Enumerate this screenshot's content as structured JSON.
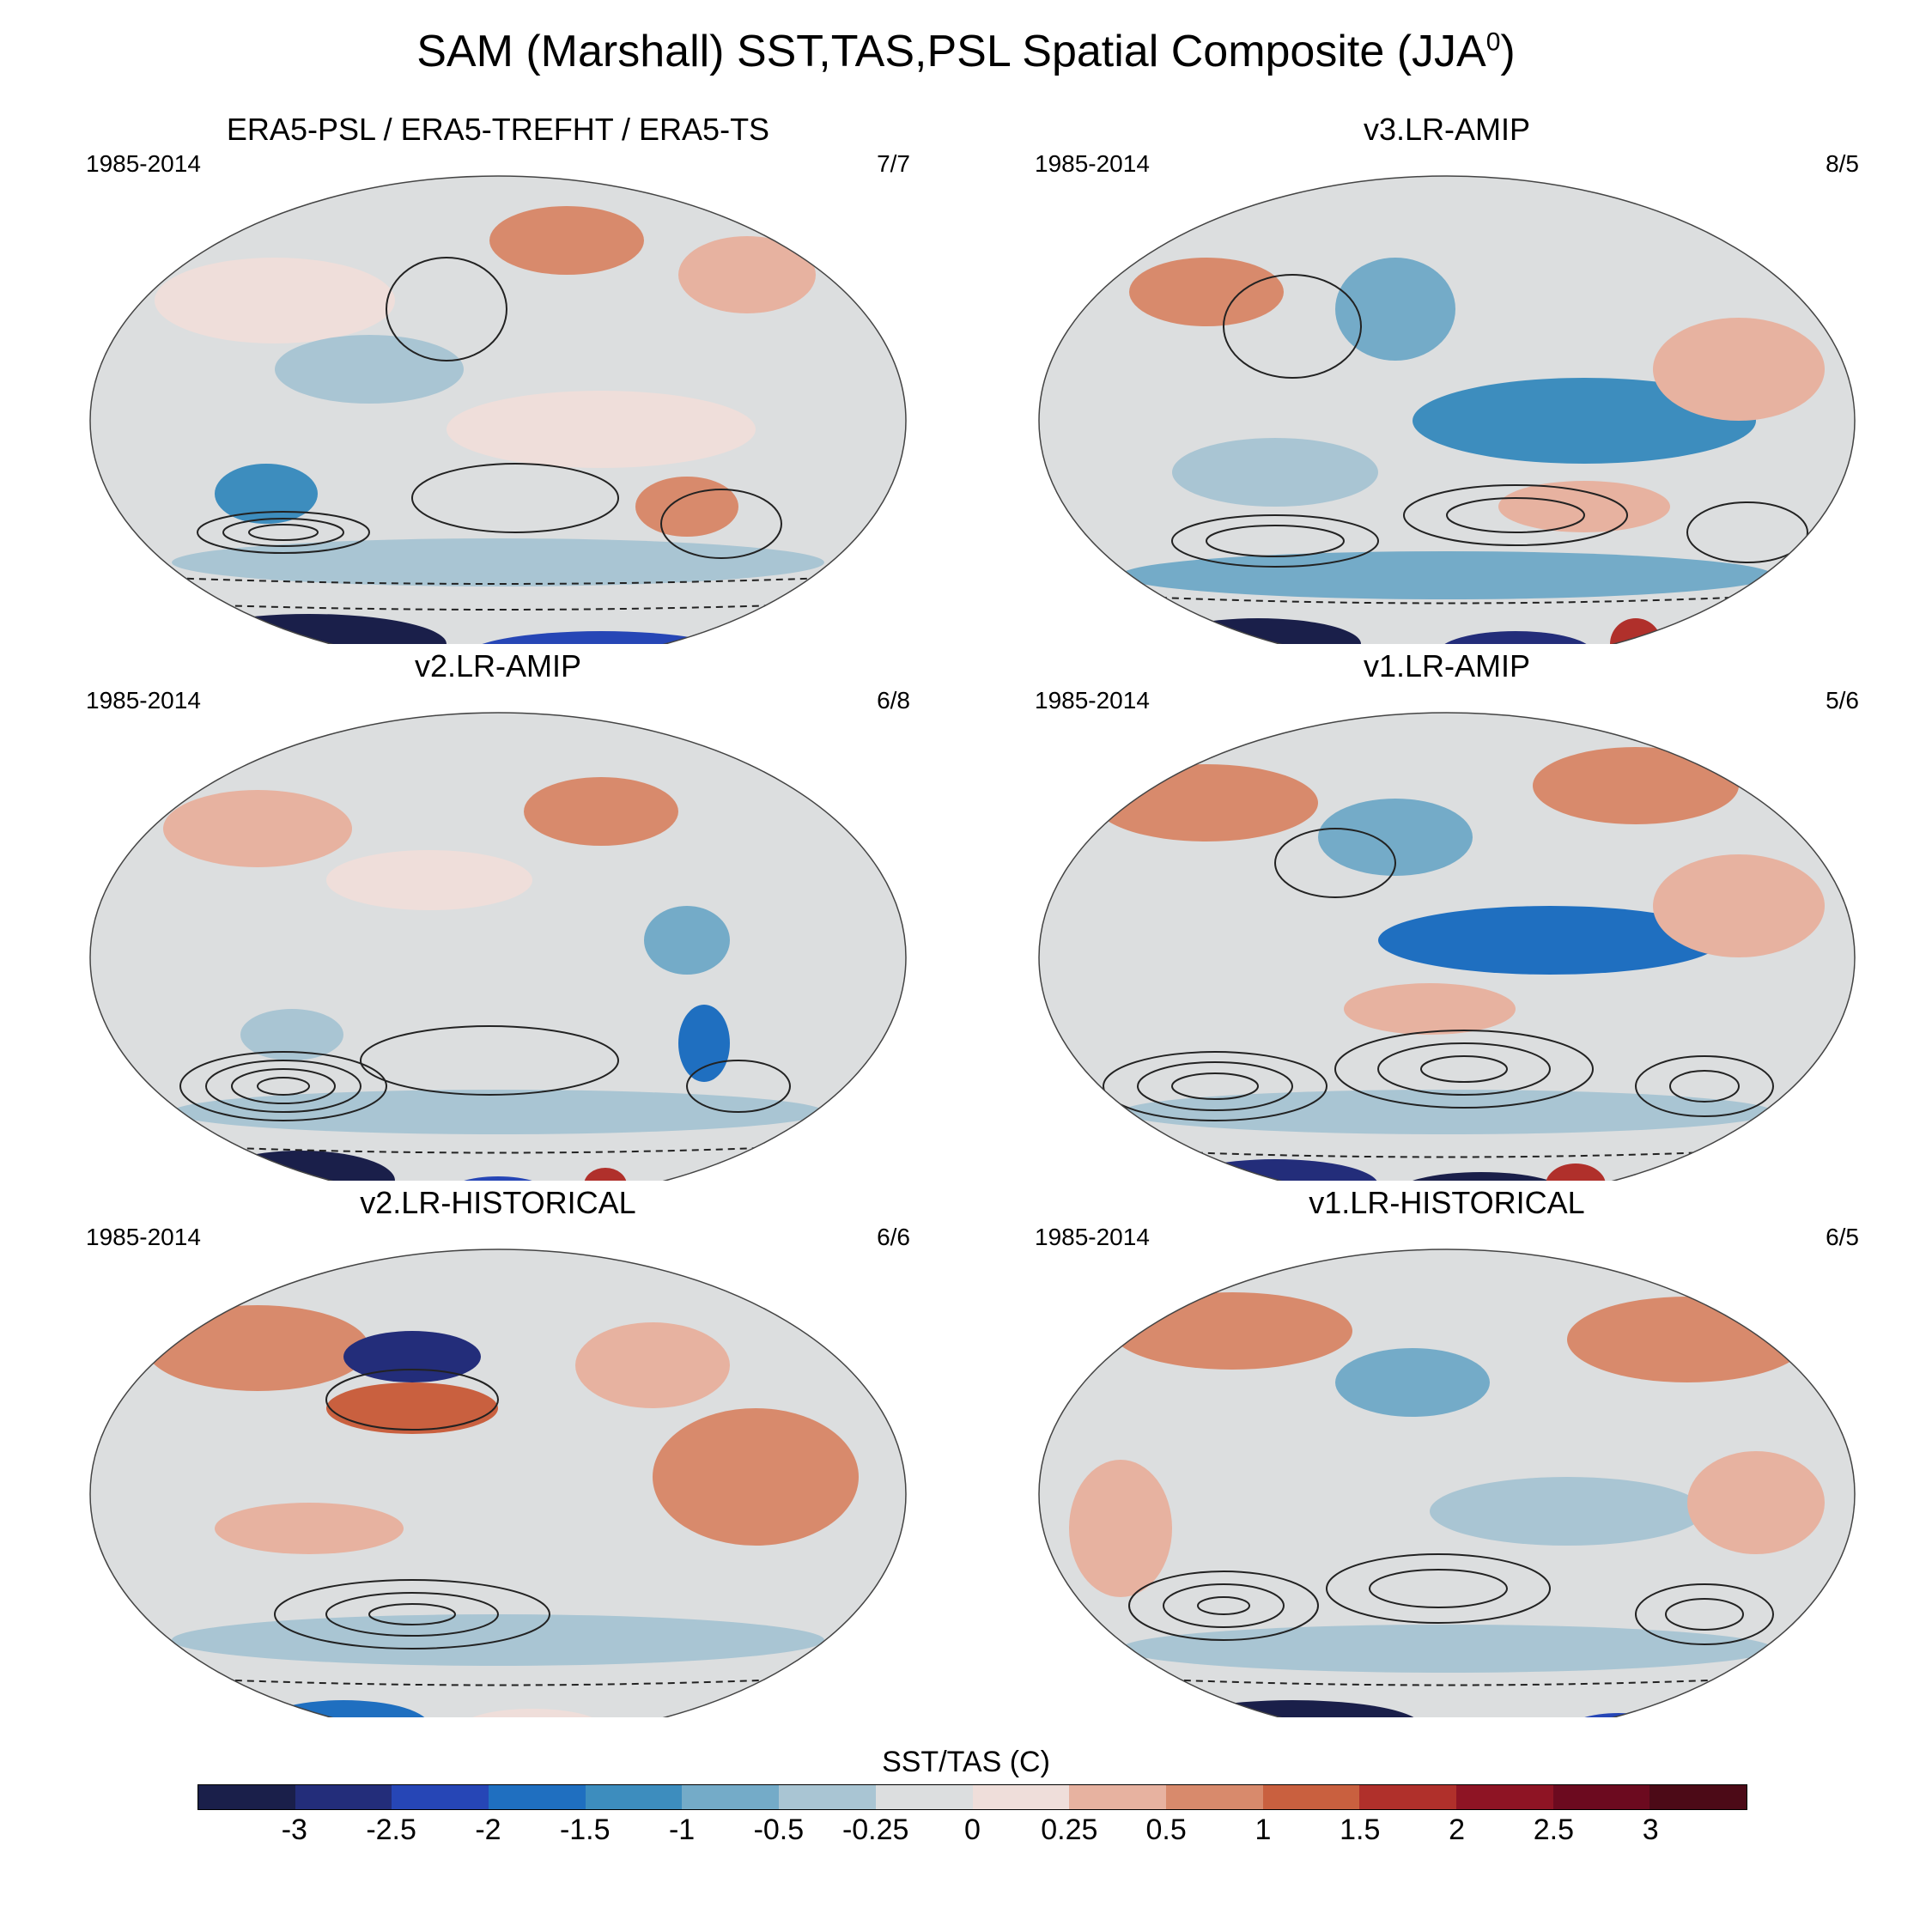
{
  "title": {
    "main": "SAM (Marshall) SST,TAS,PSL Spatial Composite (JJA",
    "superscript": "0",
    "closing": ")"
  },
  "panels": [
    {
      "title": "ERA5-PSL / ERA5-TREFHT / ERA5-TS",
      "years": "1985-2014",
      "ratio": "7/7"
    },
    {
      "title": "v3.LR-AMIP",
      "years": "1985-2014",
      "ratio": "8/5"
    },
    {
      "title": "v2.LR-AMIP",
      "years": "1985-2014",
      "ratio": "6/8"
    },
    {
      "title": "v1.LR-AMIP",
      "years": "1985-2014",
      "ratio": "5/6"
    },
    {
      "title": "v2.LR-HISTORICAL",
      "years": "1985-2014",
      "ratio": "6/6"
    },
    {
      "title": "v1.LR-HISTORICAL",
      "years": "1985-2014",
      "ratio": "6/5"
    }
  ],
  "colorbar": {
    "title": "SST/TAS (C)",
    "labels": [
      "-3",
      "-2.5",
      "-2",
      "-1.5",
      "-1",
      "-0.5",
      "-0.25",
      "0",
      "0.25",
      "0.5",
      "1",
      "1.5",
      "2",
      "2.5",
      "3"
    ],
    "colors": [
      "#1a1f4a",
      "#232d7a",
      "#2646b6",
      "#1f6fc0",
      "#3d8dbe",
      "#74abc8",
      "#a9c5d3",
      "#dcdedf",
      "#efdeda",
      "#e7b2a0",
      "#d88a6c",
      "#c9603f",
      "#b0302b",
      "#8e1424",
      "#6c0a1f",
      "#4c0a17"
    ]
  }
}
